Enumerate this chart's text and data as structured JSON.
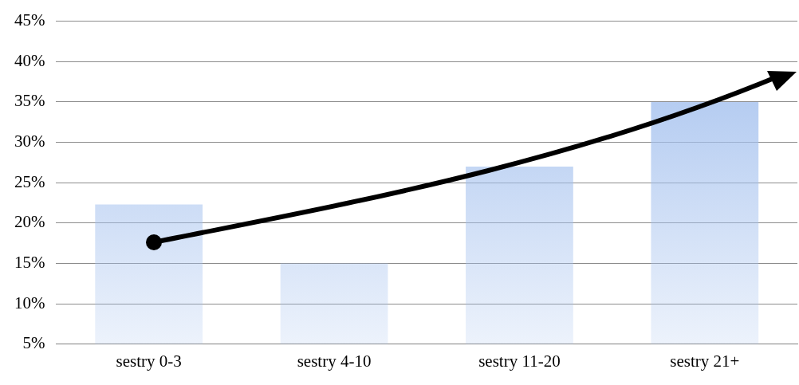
{
  "chart_data": {
    "type": "bar",
    "categories": [
      "sestry 0-3",
      "sestry 4-10",
      "sestry 11-20",
      "sestry 21+"
    ],
    "values": [
      22.3,
      15,
      27,
      35
    ],
    "color": "#a3c0ee",
    "ylim": [
      5,
      45
    ],
    "yticks": [
      {
        "value": 5,
        "label": "5%"
      },
      {
        "value": 10,
        "label": "10%"
      },
      {
        "value": 15,
        "label": "15%"
      },
      {
        "value": 20,
        "label": "20%"
      },
      {
        "value": 25,
        "label": "25%"
      },
      {
        "value": 30,
        "label": "30%"
      },
      {
        "value": 35,
        "label": "35%"
      },
      {
        "value": 40,
        "label": "40%"
      },
      {
        "value": 45,
        "label": "45%"
      }
    ],
    "grid": "y",
    "legend": false
  }
}
